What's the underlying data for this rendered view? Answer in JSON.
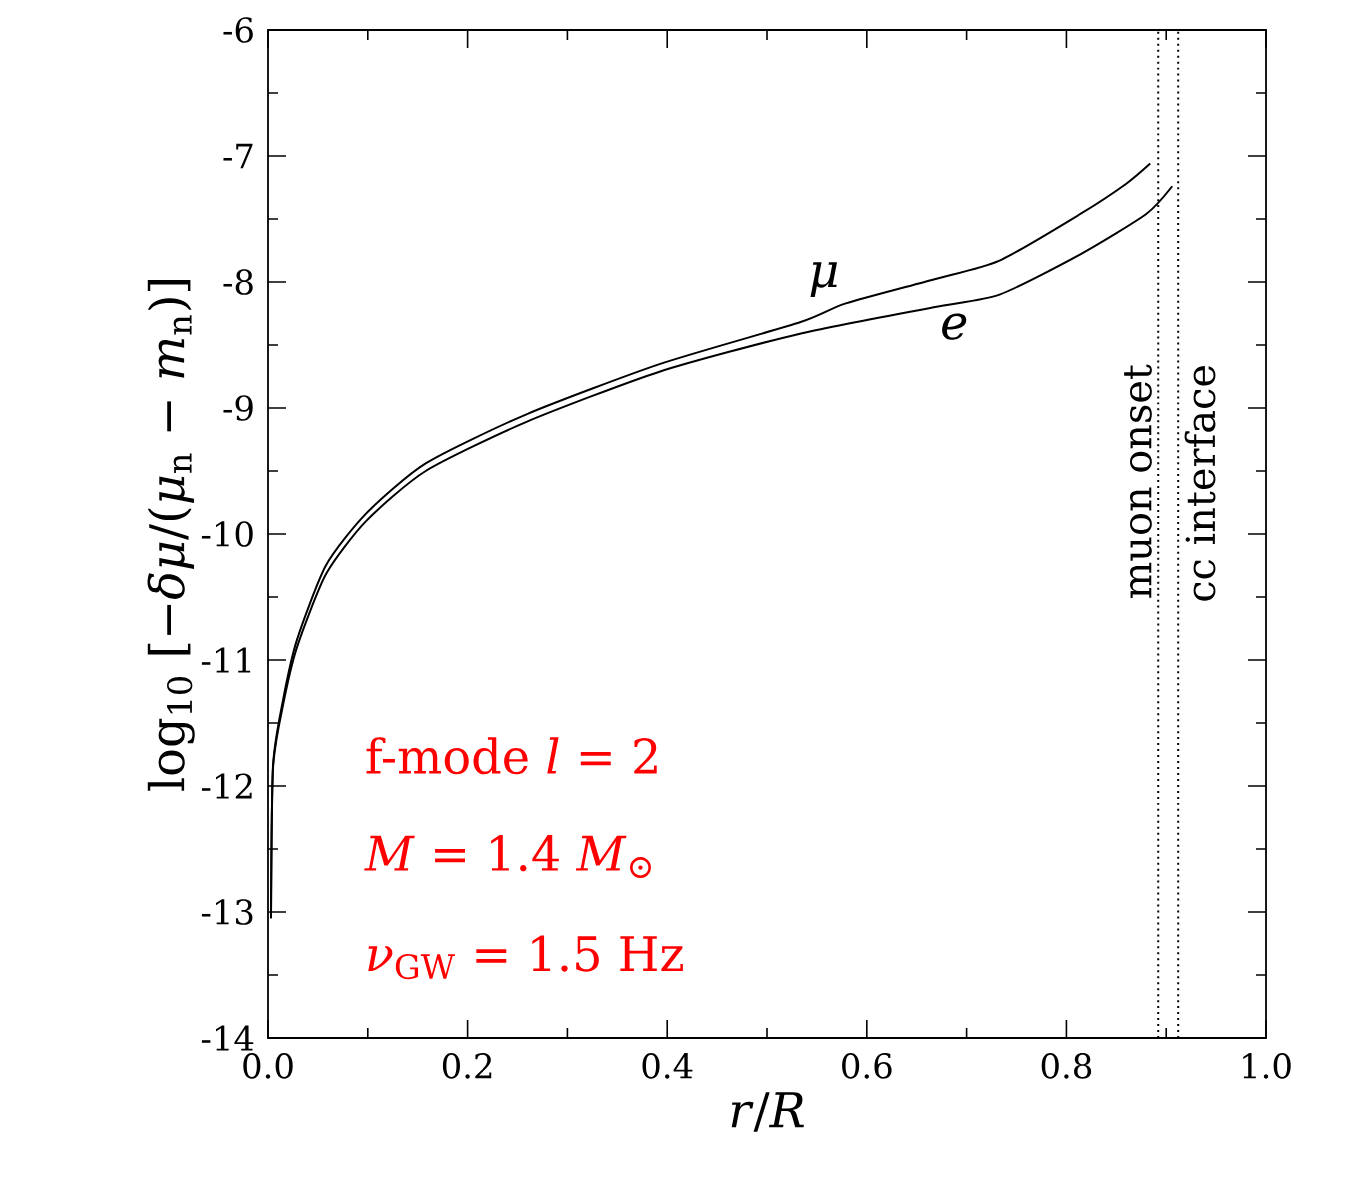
{
  "chart_data": {
    "type": "line",
    "xlabel": "*r*/*R*",
    "ylabel": "log$_{10}$ [−*δμ*/(*μ*$_{n}$ − *m*$_{n}$)]",
    "xlim": [
      0,
      1
    ],
    "ylim": [
      -14,
      -6
    ],
    "xticks": [
      {
        "value": 0,
        "label": "0.0"
      },
      {
        "value": 0.2,
        "label": "0.2"
      },
      {
        "value": 0.4,
        "label": "0.4"
      },
      {
        "value": 0.6,
        "label": "0.6"
      },
      {
        "value": 0.8,
        "label": "0.8"
      },
      {
        "value": 1,
        "label": "1.0"
      }
    ],
    "yticks": [
      -14,
      -13,
      -12,
      -11,
      -10,
      -9,
      -8,
      -7,
      -6
    ],
    "series": [
      {
        "name": "*μ*",
        "color": "#000000",
        "x": [
          0.003,
          0.005,
          0.015,
          0.029,
          0.058,
          0.098,
          0.158,
          0.259,
          0.393,
          0.533,
          0.579,
          0.667,
          0.733,
          0.814,
          0.86,
          0.884
        ],
        "values": [
          -13.05,
          -11.84,
          -11.32,
          -10.84,
          -10.25,
          -9.84,
          -9.44,
          -9.05,
          -8.65,
          -8.32,
          -8.17,
          -7.98,
          -7.83,
          -7.46,
          -7.22,
          -7.06
        ]
      },
      {
        "name": "*e*",
        "color": "#000000",
        "x": [
          0.003,
          0.005,
          0.015,
          0.029,
          0.058,
          0.098,
          0.158,
          0.259,
          0.393,
          0.533,
          0.667,
          0.733,
          0.814,
          0.88,
          0.906
        ],
        "values": [
          -13.05,
          -11.86,
          -11.36,
          -10.9,
          -10.32,
          -9.9,
          -9.5,
          -9.11,
          -8.71,
          -8.41,
          -8.2,
          -8.1,
          -7.78,
          -7.46,
          -7.24
        ]
      }
    ],
    "ref_lines": [
      {
        "axis": "x",
        "value": 0.892,
        "label": "muon onset",
        "color": "#000000",
        "line_style": "dotted"
      },
      {
        "axis": "x",
        "value": 0.912,
        "label": "cc interface",
        "color": "#000000",
        "line_style": "dotted"
      }
    ],
    "annotations": [
      "f-mode *l* = 2",
      "*M* = 1.4 *M*$_{⊙}$",
      "*ν*$_{GW}$ = 1.5 Hz"
    ],
    "marker": "none",
    "line_style": "solid",
    "grid": false,
    "legend": false
  }
}
